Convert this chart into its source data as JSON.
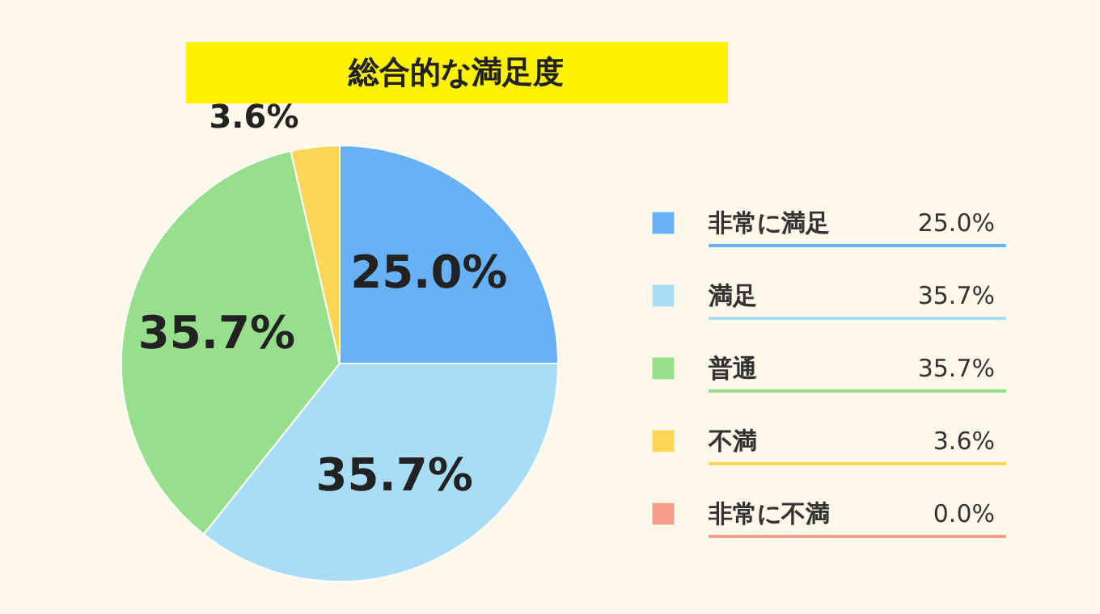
{
  "chart_data": {
    "type": "pie",
    "title": "総合的な満足度",
    "categories": [
      "非常に満足",
      "満足",
      "普通",
      "不満",
      "非常に不満"
    ],
    "values": [
      25.0,
      35.7,
      35.7,
      3.6,
      0.0
    ],
    "colors": [
      "#67b1f7",
      "#a9ddf6",
      "#97df8b",
      "#fdd657",
      "#f59c8c"
    ],
    "value_labels": [
      "25.0%",
      "35.7%",
      "35.7%",
      "3.6%",
      "0.0%"
    ],
    "legend": "right"
  }
}
